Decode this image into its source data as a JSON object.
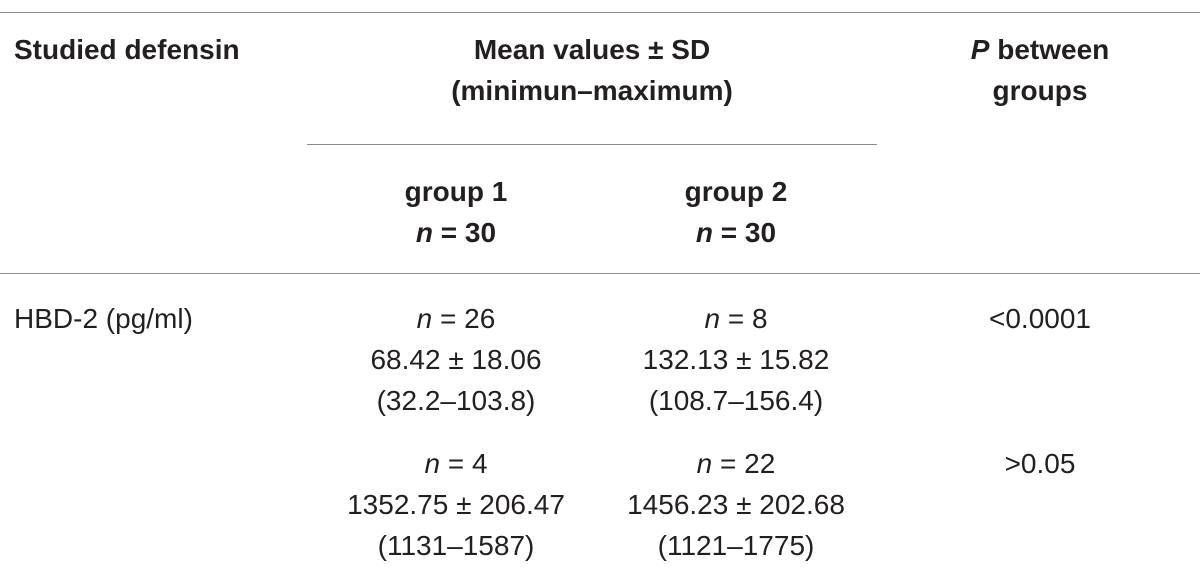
{
  "header": {
    "studied": "Studied defensin",
    "mean_line1": "Mean values ± SD",
    "mean_line2": "(minimun–maximum)",
    "p_prefix": "P",
    "p_line1_rest": " between",
    "p_line2": "groups",
    "group1_name": "group 1",
    "group1_n_label": "n",
    "group1_n_value": " = 30",
    "group2_name": "group 2",
    "group2_n_label": "n",
    "group2_n_value": " = 30"
  },
  "rows": [
    {
      "label": "HBD-2 (pg/ml)",
      "group1": {
        "n_label": "n",
        "n_value": " = 26",
        "mean_sd": "68.42 ± 18.06",
        "range": "(32.2–103.8)"
      },
      "group2": {
        "n_label": "n",
        "n_value": " = 8",
        "mean_sd": "132.13 ± 15.82",
        "range": "(108.7–156.4)"
      },
      "p": "<0.0001"
    },
    {
      "label": "",
      "group1": {
        "n_label": "n",
        "n_value": " = 4",
        "mean_sd": "1352.75 ± 206.47",
        "range": "(1131–1587)"
      },
      "group2": {
        "n_label": "n",
        "n_value": " = 22",
        "mean_sd": "1456.23 ± 202.68",
        "range": "(1121–1775)"
      },
      "p": ">0.05"
    }
  ]
}
